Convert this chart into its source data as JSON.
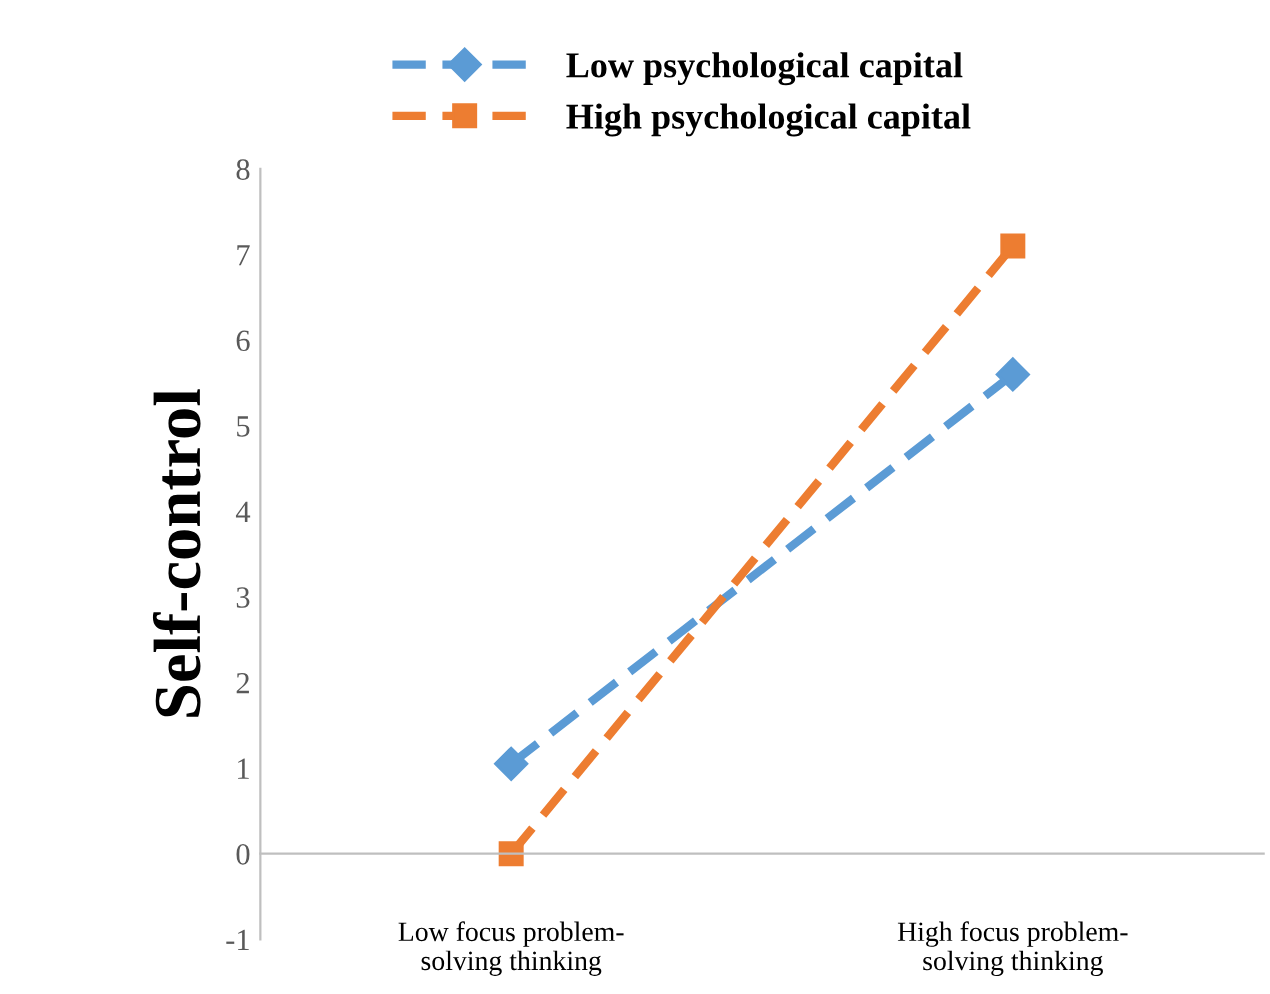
{
  "chart_data": {
    "type": "line",
    "ylabel": "Self-control",
    "categories": [
      "Low focus problem-\nsolving thinking",
      "High focus problem-\nsolving thinking"
    ],
    "series": [
      {
        "name": "Low psychological capital",
        "color": "#5b9bd5",
        "values": [
          1.05,
          5.6
        ],
        "marker": "diamond"
      },
      {
        "name": "High psychological capital",
        "color": "#ed7d31",
        "values": [
          0.0,
          7.1
        ],
        "marker": "square"
      }
    ],
    "ylim": [
      -1,
      8
    ],
    "yticks": [
      -1,
      0,
      1,
      2,
      3,
      4,
      5,
      6,
      7,
      8
    ],
    "grid": false,
    "legend": "top",
    "line_style": "dashed"
  }
}
